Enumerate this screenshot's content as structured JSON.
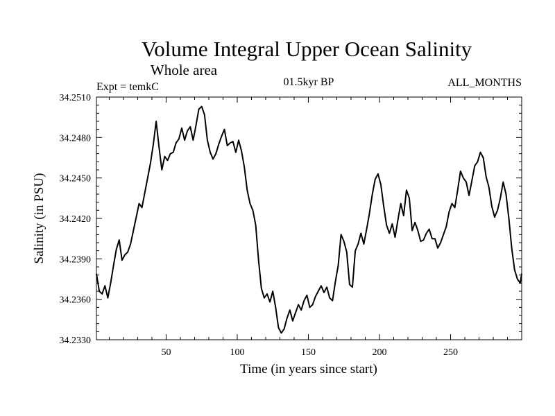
{
  "chart_data": {
    "type": "line",
    "title": "Volume Integral Upper Ocean Salinity",
    "subtitle": "Whole area",
    "annotations": {
      "left": "Expt = temkC",
      "center": "01.5kyr BP",
      "right": "ALL_MONTHS"
    },
    "xlabel": "Time (in years since start)",
    "ylabel": "Salinity (in PSU)",
    "xlim": [
      1,
      300
    ],
    "ylim": [
      34.233,
      34.251
    ],
    "xticks": [
      50,
      100,
      150,
      200,
      250
    ],
    "xtick_labels": [
      "50",
      "100",
      "150",
      "200",
      "250"
    ],
    "yticks": [
      34.233,
      34.236,
      34.239,
      34.242,
      34.245,
      34.248,
      34.251
    ],
    "ytick_labels": [
      "34.2330",
      "34.2360",
      "34.2390",
      "34.2420",
      "34.2450",
      "34.2480",
      "34.2510"
    ],
    "series": [
      {
        "name": "Salinity",
        "x": [
          1,
          3,
          5,
          7,
          9,
          11,
          13,
          15,
          17,
          19,
          21,
          23,
          25,
          27,
          29,
          31,
          33,
          35,
          37,
          39,
          41,
          43,
          45,
          47,
          49,
          51,
          53,
          55,
          57,
          59,
          61,
          63,
          65,
          67,
          69,
          71,
          73,
          75,
          77,
          79,
          81,
          83,
          85,
          87,
          89,
          91,
          93,
          95,
          97,
          99,
          101,
          103,
          105,
          107,
          109,
          111,
          113,
          115,
          117,
          119,
          121,
          123,
          125,
          127,
          129,
          131,
          133,
          135,
          137,
          139,
          141,
          143,
          145,
          147,
          149,
          151,
          153,
          155,
          157,
          159,
          161,
          163,
          165,
          167,
          169,
          171,
          173,
          175,
          177,
          179,
          181,
          183,
          185,
          187,
          189,
          191,
          193,
          195,
          197,
          199,
          201,
          203,
          205,
          207,
          209,
          211,
          213,
          215,
          217,
          219,
          221,
          223,
          225,
          227,
          229,
          231,
          233,
          235,
          237,
          239,
          241,
          243,
          245,
          247,
          249,
          251,
          253,
          255,
          257,
          259,
          261,
          263,
          265,
          267,
          269,
          271,
          273,
          275,
          277,
          279,
          281,
          283,
          285,
          287,
          289,
          291,
          293,
          295,
          297,
          299,
          300
        ],
        "y": [
          34.2379,
          34.2366,
          34.2364,
          34.237,
          34.2361,
          34.2372,
          34.2385,
          34.2397,
          34.2404,
          34.2389,
          34.2393,
          34.2395,
          34.2401,
          34.2411,
          34.2421,
          34.2431,
          34.2428,
          34.2439,
          34.245,
          34.2461,
          34.2475,
          34.2492,
          34.2473,
          34.2456,
          34.2466,
          34.2463,
          34.2468,
          34.2469,
          34.2476,
          34.2479,
          34.2487,
          34.2478,
          34.2485,
          34.2488,
          34.2478,
          34.2489,
          34.2501,
          34.2503,
          34.2497,
          34.2478,
          34.2469,
          34.2464,
          34.2468,
          34.2475,
          34.2481,
          34.2486,
          34.2474,
          34.2476,
          34.2477,
          34.2469,
          34.2478,
          34.247,
          34.2458,
          34.2441,
          34.2431,
          34.2426,
          34.2415,
          34.2389,
          34.2368,
          34.2361,
          34.2364,
          34.2358,
          34.2366,
          34.2354,
          34.2339,
          34.2335,
          34.2338,
          34.2346,
          34.2352,
          34.2344,
          34.235,
          34.2356,
          34.2352,
          34.2359,
          34.2363,
          34.2354,
          34.2356,
          34.2362,
          34.2366,
          34.237,
          34.2365,
          34.2369,
          34.2361,
          34.2359,
          34.2373,
          34.2385,
          34.2408,
          34.2403,
          34.2395,
          34.2371,
          34.2369,
          34.2396,
          34.2401,
          34.2409,
          34.2401,
          34.2412,
          34.2424,
          34.2438,
          34.2449,
          34.2453,
          34.2445,
          34.2429,
          34.2415,
          34.2409,
          34.2416,
          34.2406,
          34.2419,
          34.2431,
          34.2422,
          34.2441,
          34.2435,
          34.2411,
          34.2417,
          34.2411,
          34.2403,
          34.2404,
          34.2409,
          34.2412,
          34.2405,
          34.2405,
          34.2398,
          34.2402,
          34.2408,
          34.2414,
          34.2425,
          34.2431,
          34.2428,
          34.2441,
          34.2455,
          34.245,
          34.2447,
          34.2437,
          34.2448,
          34.2459,
          34.2462,
          34.2469,
          34.2465,
          34.2451,
          34.2443,
          34.2429,
          34.2421,
          34.2426,
          34.2435,
          34.2447,
          34.2438,
          34.242,
          34.2398,
          34.2382,
          34.2375,
          34.2372,
          34.2379
        ]
      }
    ]
  }
}
